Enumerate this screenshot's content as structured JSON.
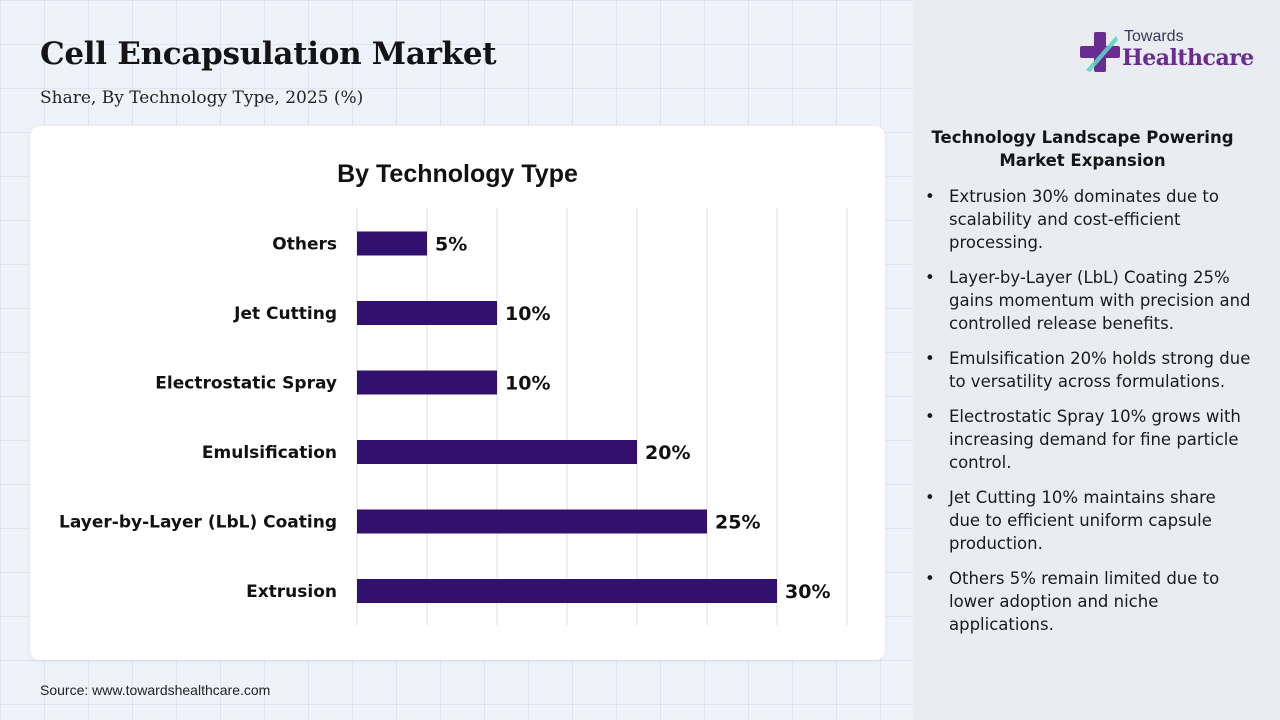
{
  "header": {
    "title": "Cell Encapsulation Market",
    "subtitle": "Share, By Technology Type, 2025 (%)"
  },
  "logo": {
    "top_text": "Towards",
    "main_text": "Healthcare"
  },
  "chart_data": {
    "type": "bar",
    "orientation": "horizontal",
    "title": "By Technology Type",
    "categories": [
      "Others",
      "Jet Cutting",
      "Electrostatic Spray",
      "Emulsification",
      "Layer-by-Layer (LbL) Coating",
      "Extrusion"
    ],
    "values": [
      5,
      10,
      10,
      20,
      25,
      30
    ],
    "data_labels": [
      "5%",
      "10%",
      "10%",
      "20%",
      "25%",
      "30%"
    ],
    "xlim": [
      0,
      35
    ],
    "grid": true,
    "xlabel": "",
    "ylabel": "",
    "bar_color": "#32106e"
  },
  "panel": {
    "title": "Technology Landscape Powering Market Expansion",
    "bullet_char": "•",
    "bullets": [
      "Extrusion 30% dominates due to scalability and cost-efficient processing.",
      "Layer-by-Layer (LbL) Coating 25% gains momentum with precision and controlled release benefits.",
      "Emulsification 20% holds strong due to versatility across formulations.",
      "Electrostatic Spray 10% grows with increasing demand for fine particle control.",
      "Jet Cutting 10% maintains share due to efficient uniform capsule production.",
      "Others 5% remain limited due to lower adoption and niche applications."
    ]
  },
  "footer": {
    "source": "Source: www.towardshealthcare.com"
  },
  "colors": {
    "brand": "#6a2c91",
    "bar": "#32106e",
    "panel_bg": "#e9edf2"
  }
}
